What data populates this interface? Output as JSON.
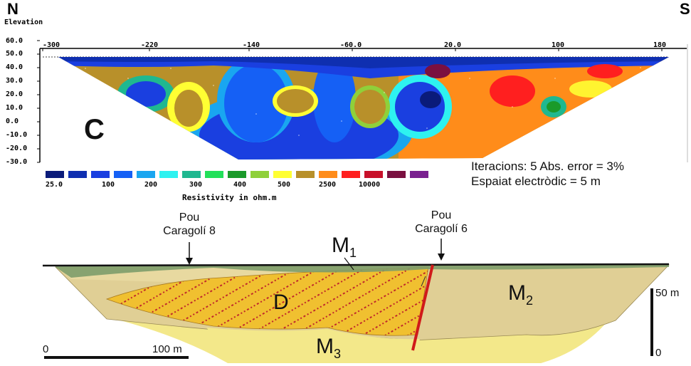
{
  "section_top": {
    "north_label": "N",
    "south_label": "S",
    "elevation_label": "Elevation",
    "panel_letter": "C",
    "y_ticks": [
      "60.0",
      "50.0",
      "40.0",
      "30.0",
      "20.0",
      "10.0",
      "0.0",
      "-10.0",
      "-20.0",
      "-30.0"
    ],
    "x_ticks": [
      "-300",
      "-220",
      "-140",
      "-60.0",
      "20.0",
      "100",
      "180"
    ],
    "legend_ticks": [
      "25.0",
      "100",
      "200",
      "300",
      "400",
      "500",
      "2500",
      "10000"
    ],
    "legend_title": "Resistivity in ohm.m",
    "legend_colors": [
      "#0a1b7a",
      "#0f2fb0",
      "#1a3fe0",
      "#1560f5",
      "#19a6f0",
      "#2ef2f0",
      "#1fb890",
      "#22e05a",
      "#1a9a2a",
      "#8fd03a",
      "#ffff33",
      "#b8902a",
      "#ff8c1a",
      "#ff1f1f",
      "#c8102a",
      "#7a1040",
      "#7a2090"
    ],
    "info_line1": "Iteracions: 5 Abs. error = 3%",
    "info_line2": "Espaiat electròdic = 5 m"
  },
  "section_bottom": {
    "well1_label_line1": "Pou",
    "well1_label_line2": "Caragolí 8",
    "well2_label_line1": "Pou",
    "well2_label_line2": "Caragolí 6",
    "unit_m1": "M",
    "unit_m1_sub": "1",
    "unit_m2": "M",
    "unit_m2_sub": "2",
    "unit_m3": "M",
    "unit_m3_sub": "3",
    "unit_d": "D",
    "scale_h_start": "0",
    "scale_h_end": "100 m",
    "scale_v_top": "50 m",
    "scale_v_bottom": "0"
  },
  "colors": {
    "fault": "#d01a1a",
    "unit_d": "#f0c030",
    "unit_m2": "#e0cf95",
    "unit_m3": "#f3e88a",
    "unit_m1": "#7d9c6a",
    "upper_band": "#e8d9a0"
  }
}
